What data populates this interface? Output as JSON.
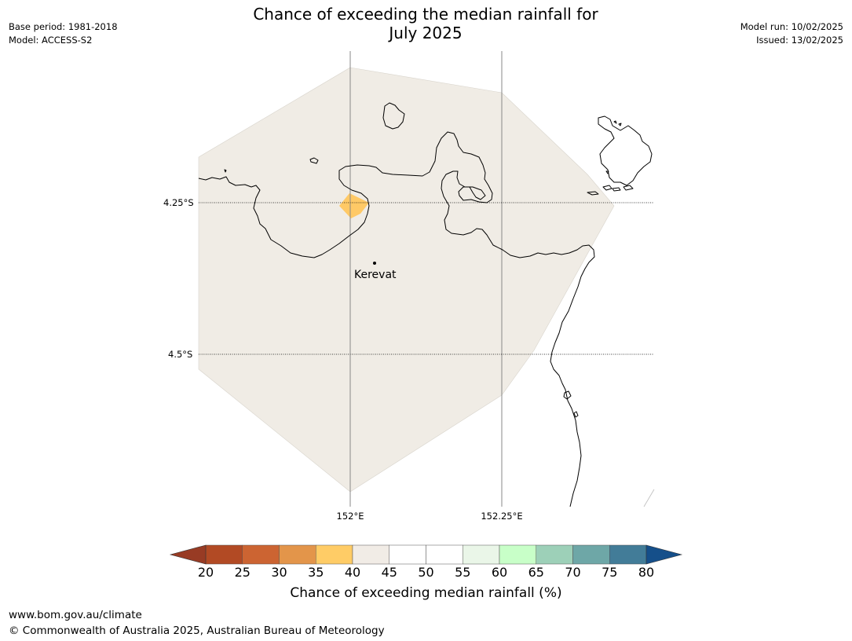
{
  "title_line1": "Chance of exceeding the median rainfall for",
  "title_line2": "July 2025",
  "meta_left": [
    "Base period: 1981-2018",
    "Model: ACCESS-S2"
  ],
  "meta_right": [
    "Model run: 10/02/2025",
    "Issued: 13/02/2025"
  ],
  "map": {
    "lat_labels": [
      "4.25°S",
      "4.5°S"
    ],
    "lon_labels": [
      "152°E",
      "152.25°E"
    ],
    "places": [
      {
        "name": "Kerevat"
      }
    ],
    "colors": {
      "land_background": "#f0ece5",
      "cell_35_40": "#ffc966",
      "coastline": "#000000",
      "gridline": "#888888"
    }
  },
  "colorbar": {
    "label": "Chance of exceeding median rainfall (%)",
    "ticks": [
      "20",
      "25",
      "30",
      "35",
      "40",
      "45",
      "50",
      "55",
      "60",
      "65",
      "70",
      "75",
      "80"
    ],
    "under_color": "#983b24",
    "over_color": "#154f8a",
    "colors": [
      "#b24a24",
      "#cc6432",
      "#e3954a",
      "#ffcc66",
      "#f1ece6",
      "#ffffff",
      "#ffffff",
      "#eaf6e8",
      "#c8ffc8",
      "#9dd0b8",
      "#6ea7a7",
      "#427c98"
    ]
  },
  "footer": {
    "url": "www.bom.gov.au/climate",
    "copyright": "© Commonwealth of Australia 2025, Australian Bureau of Meteorology"
  }
}
